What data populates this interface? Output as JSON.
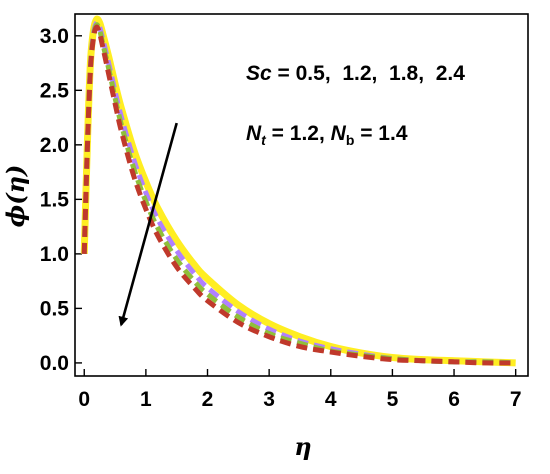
{
  "chart_data": {
    "type": "line",
    "title": "",
    "xlabel": "η",
    "ylabel": "ϕ(η)",
    "xlim": [
      -0.15,
      7.2
    ],
    "ylim": [
      -0.12,
      3.2
    ],
    "xticks": [
      "0",
      "1",
      "2",
      "3",
      "4",
      "5",
      "6",
      "7"
    ],
    "yticks": [
      "0.0",
      "0.5",
      "1.0",
      "1.5",
      "2.0",
      "2.5",
      "3.0"
    ],
    "grid": false,
    "series": [
      {
        "color": "#ffee22",
        "dash": "solid",
        "x": [
          0,
          0.05,
          0.1,
          0.15,
          0.2,
          0.25,
          0.3,
          0.4,
          0.5,
          0.6,
          0.8,
          1.0,
          1.2,
          1.5,
          1.8,
          2.0,
          2.5,
          3.0,
          3.5,
          4.0,
          4.5,
          5.0,
          5.5,
          6.0,
          6.5,
          7.0
        ],
        "y": [
          1.0,
          2.0,
          2.75,
          3.05,
          3.15,
          3.12,
          3.02,
          2.8,
          2.56,
          2.34,
          1.96,
          1.66,
          1.41,
          1.12,
          0.89,
          0.77,
          0.53,
          0.36,
          0.24,
          0.15,
          0.09,
          0.05,
          0.03,
          0.02,
          0.01,
          0.0
        ]
      },
      {
        "color": "#b080ff",
        "dash": "dashed",
        "x": [
          0,
          0.05,
          0.1,
          0.15,
          0.2,
          0.25,
          0.3,
          0.4,
          0.5,
          0.6,
          0.8,
          1.0,
          1.2,
          1.5,
          1.8,
          2.0,
          2.5,
          3.0,
          3.5,
          4.0,
          4.5,
          5.0,
          5.5,
          6.0,
          6.5,
          7.0
        ],
        "y": [
          1.0,
          1.98,
          2.72,
          3.02,
          3.12,
          3.08,
          2.97,
          2.74,
          2.49,
          2.26,
          1.87,
          1.56,
          1.31,
          1.03,
          0.81,
          0.69,
          0.47,
          0.31,
          0.2,
          0.13,
          0.08,
          0.04,
          0.02,
          0.01,
          0.01,
          0.0
        ]
      },
      {
        "color": "#8fbf3a",
        "dash": "dashed",
        "x": [
          0,
          0.05,
          0.1,
          0.15,
          0.2,
          0.25,
          0.3,
          0.4,
          0.5,
          0.6,
          0.8,
          1.0,
          1.2,
          1.5,
          1.8,
          2.0,
          2.5,
          3.0,
          3.5,
          4.0,
          4.5,
          5.0,
          5.5,
          6.0,
          6.5,
          7.0
        ],
        "y": [
          1.0,
          1.97,
          2.7,
          3.0,
          3.1,
          3.05,
          2.93,
          2.69,
          2.43,
          2.19,
          1.79,
          1.48,
          1.23,
          0.95,
          0.74,
          0.63,
          0.42,
          0.27,
          0.18,
          0.11,
          0.07,
          0.04,
          0.02,
          0.01,
          0.01,
          0.0
        ]
      },
      {
        "color": "#c0392b",
        "dash": "dashed",
        "x": [
          0,
          0.05,
          0.1,
          0.15,
          0.2,
          0.25,
          0.3,
          0.4,
          0.5,
          0.6,
          0.8,
          1.0,
          1.2,
          1.5,
          1.8,
          2.0,
          2.5,
          3.0,
          3.5,
          4.0,
          4.5,
          5.0,
          5.5,
          6.0,
          6.5,
          7.0
        ],
        "y": [
          1.0,
          1.96,
          2.68,
          2.98,
          3.08,
          3.02,
          2.9,
          2.64,
          2.38,
          2.13,
          1.72,
          1.41,
          1.16,
          0.88,
          0.68,
          0.57,
          0.37,
          0.24,
          0.15,
          0.1,
          0.06,
          0.03,
          0.02,
          0.01,
          0.0,
          0.0
        ]
      }
    ],
    "annotations": {
      "sc_label": "Sc",
      "sc_values": " = 0.5,  1.2,  1.8,  2.4",
      "nt_label": "N",
      "nt_sub": "t",
      "nt_value": " = 1.2, ",
      "nb_label": "N",
      "nb_sub": "b",
      "nb_value": " = 1.4"
    },
    "arrow": {
      "from": [
        1.5,
        2.2
      ],
      "to": [
        0.6,
        0.35
      ]
    }
  }
}
